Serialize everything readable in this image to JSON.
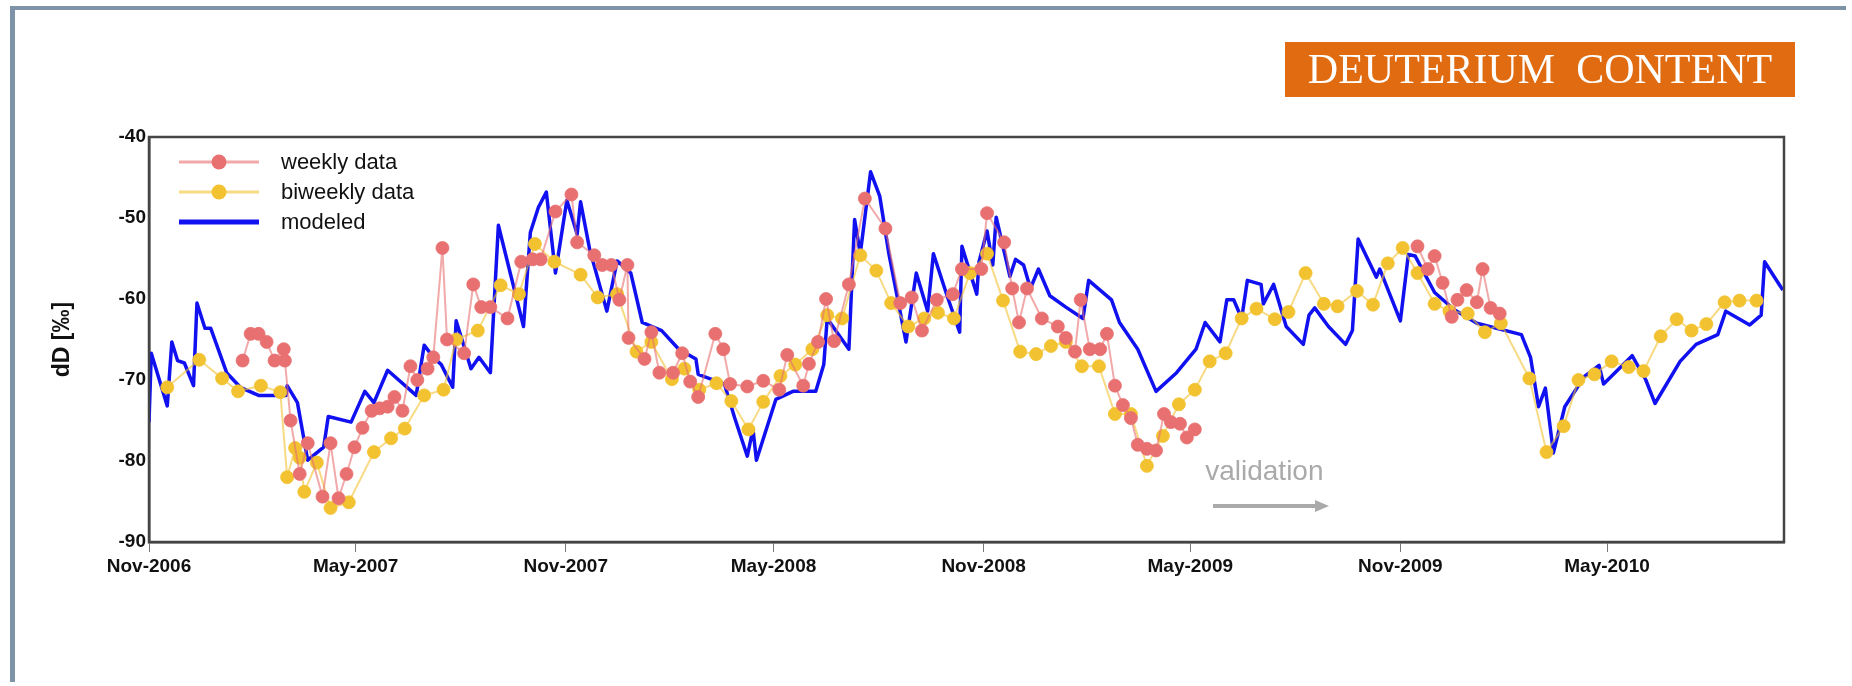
{
  "chart_data": {
    "type": "line",
    "title": "DEUTERIUM  CONTENT",
    "ylabel": "dD [‰]",
    "annotations": [
      "validation"
    ],
    "xlim": [
      "2006-11-01",
      "2010-10-03"
    ],
    "xticks": [
      {
        "value": "2006-11-01",
        "label": "Nov-2006"
      },
      {
        "value": "2007-05-01",
        "label": "May-2007"
      },
      {
        "value": "2007-11-01",
        "label": "Nov-2007"
      },
      {
        "value": "2008-05-01",
        "label": "May-2008"
      },
      {
        "value": "2008-11-01",
        "label": "Nov-2008"
      },
      {
        "value": "2009-05-01",
        "label": "May-2009"
      },
      {
        "value": "2009-11-01",
        "label": "Nov-2009"
      },
      {
        "value": "2010-05-01",
        "label": "May-2010"
      }
    ],
    "ylim": [
      -90,
      -40
    ],
    "yticks": [
      -90,
      -80,
      -70,
      -60,
      -50,
      -40
    ],
    "grid": false,
    "legend": "top left",
    "line_style": "solid",
    "series": [
      {
        "name": "weekly data",
        "color": "#e87070",
        "marker": "circle",
        "x": [
          "2007-01-22",
          "2007-01-29",
          "2007-02-05",
          "2007-02-12",
          "2007-02-19",
          "2007-02-27",
          "2007-02-28",
          "2007-03-05",
          "2007-03-13",
          "2007-03-20",
          "2007-04-02",
          "2007-04-09",
          "2007-04-16",
          "2007-04-23",
          "2007-04-30",
          "2007-05-07",
          "2007-05-15",
          "2007-05-22",
          "2007-05-29",
          "2007-06-04",
          "2007-06-11",
          "2007-06-18",
          "2007-06-24",
          "2007-07-03",
          "2007-07-08",
          "2007-07-16",
          "2007-07-20",
          "2007-08-04",
          "2007-08-12",
          "2007-08-19",
          "2007-08-27",
          "2007-09-11",
          "2007-09-23",
          "2007-10-03",
          "2007-10-10",
          "2007-10-23",
          "2007-11-06",
          "2007-11-11",
          "2007-11-26",
          "2007-12-03",
          "2007-12-11",
          "2007-12-18",
          "2007-12-25",
          "2007-12-26",
          "2008-01-09",
          "2008-01-15",
          "2008-01-22",
          "2008-02-03",
          "2008-02-11",
          "2008-02-18",
          "2008-02-25",
          "2008-03-11",
          "2008-03-18",
          "2008-03-24",
          "2008-04-08",
          "2008-04-22",
          "2008-05-06",
          "2008-05-13",
          "2008-05-27",
          "2008-06-01",
          "2008-06-09",
          "2008-06-16",
          "2008-06-23",
          "2008-07-06",
          "2008-07-20",
          "2008-08-07",
          "2008-08-20",
          "2008-08-30",
          "2008-09-08",
          "2008-09-21",
          "2008-10-05",
          "2008-10-13",
          "2008-10-30",
          "2008-11-04",
          "2008-11-19",
          "2008-11-26",
          "2008-12-02",
          "2008-12-09",
          "2008-12-22",
          "2009-01-05",
          "2009-01-12",
          "2009-01-20",
          "2009-01-25",
          "2009-02-02",
          "2009-02-11",
          "2009-02-17",
          "2009-02-24",
          "2009-03-03",
          "2009-03-10",
          "2009-03-16",
          "2009-03-24",
          "2009-04-01",
          "2009-04-08",
          "2009-04-14",
          "2009-04-22",
          "2009-04-28",
          "2009-05-05",
          "2009-08-01",
          "2009-11-16",
          "2009-11-25",
          "2009-12-01",
          "2009-12-08",
          "2009-12-16",
          "2009-12-21",
          "2009-12-29",
          "2010-01-07",
          "2010-01-12",
          "2010-01-19",
          "2010-01-27"
        ],
        "values": [
          -67.6,
          -64.3,
          -64.3,
          -65.3,
          -67.6,
          -66.2,
          -67.6,
          -75.0,
          -81.6,
          -77.8,
          -84.4,
          -77.8,
          -84.6,
          -81.6,
          -78.3,
          -75.9,
          -73.8,
          -73.5,
          -73.3,
          -72.1,
          -73.8,
          -68.3,
          -70.0,
          -68.6,
          -67.2,
          -53.7,
          -65.0,
          -66.7,
          -58.2,
          -61.0,
          -61.0,
          -62.4,
          -55.4,
          -55.1,
          -55.1,
          -49.2,
          -47.1,
          -53.0,
          -54.6,
          -55.8,
          -55.8,
          -60.1,
          -55.8,
          -64.8,
          -67.4,
          -64.1,
          -69.1,
          -69.1,
          -66.7,
          -70.2,
          -72.1,
          -64.3,
          -66.2,
          -70.5,
          -70.8,
          -70.1,
          -71.2,
          -66.9,
          -70.7,
          -68.0,
          -65.3,
          -60.0,
          -65.2,
          -58.2,
          -47.6,
          -51.3,
          -60.5,
          -59.8,
          -63.9,
          -60.1,
          -59.4,
          -56.3,
          -56.3,
          -49.4,
          -53.0,
          -58.7,
          -62.9,
          -58.7,
          -62.4,
          -63.4,
          -64.8,
          -66.5,
          -60.1,
          -66.2,
          -66.2,
          -64.3,
          -70.7,
          -73.1,
          -74.7,
          -78.0,
          -78.5,
          -78.7,
          -74.2,
          -75.2,
          -75.4,
          -77.1,
          -76.1,
          null,
          -53.5,
          -56.3,
          -54.7,
          -58.0,
          -62.2,
          -60.1,
          -58.9,
          -60.4,
          -56.3,
          -61.1,
          -61.8
        ]
      },
      {
        "name": "biweekly data",
        "color": "#f2c230",
        "marker": "circle",
        "x": [
          "2006-11-17",
          "2006-12-15",
          "2007-01-04",
          "2007-01-18",
          "2007-02-07",
          "2007-02-24",
          "2007-03-02",
          "2007-03-09",
          "2007-03-13",
          "2007-03-17",
          "2007-03-28",
          "2007-04-09",
          "2007-04-25",
          "2007-05-17",
          "2007-06-01",
          "2007-06-13",
          "2007-06-30",
          "2007-07-17",
          "2007-07-28",
          "2007-08-16",
          "2007-09-05",
          "2007-09-21",
          "2007-10-05",
          "2007-10-22",
          "2007-11-14",
          "2007-11-29",
          "2007-12-16",
          "2008-01-02",
          "2008-01-15",
          "2008-02-02",
          "2008-02-13",
          "2008-02-26",
          "2008-03-12",
          "2008-03-25",
          "2008-04-09",
          "2008-04-22",
          "2008-05-07",
          "2008-05-20",
          "2008-06-04",
          "2008-06-17",
          "2008-06-30",
          "2008-07-16",
          "2008-07-30",
          "2008-08-12",
          "2008-08-27",
          "2008-09-10",
          "2008-09-22",
          "2008-10-06",
          "2008-10-20",
          "2008-11-04",
          "2008-11-18",
          "2008-12-03",
          "2008-12-17",
          "2008-12-30",
          "2009-01-12",
          "2009-01-26",
          "2009-02-10",
          "2009-02-24",
          "2009-03-10",
          "2009-03-24",
          "2009-04-07",
          "2009-04-21",
          "2009-05-05",
          "2009-05-18",
          "2009-06-01",
          "2009-06-15",
          "2009-06-28",
          "2009-07-14",
          "2009-07-26",
          "2009-08-10",
          "2009-08-26",
          "2009-09-07",
          "2009-09-24",
          "2009-10-08",
          "2009-10-21",
          "2009-11-03",
          "2009-11-16",
          "2009-12-01",
          "2009-12-14",
          "2009-12-30",
          "2010-01-14",
          "2010-01-28",
          "2010-02-22",
          "2010-03-09",
          "2010-03-24",
          "2010-04-06",
          "2010-04-20",
          "2010-05-05",
          "2010-05-20",
          "2010-06-02",
          "2010-06-17",
          "2010-07-01",
          "2010-07-14",
          "2010-07-27",
          "2010-08-12",
          "2010-08-25",
          "2010-09-09"
        ],
        "values": [
          -70.9,
          -67.5,
          -69.8,
          -71.4,
          -70.7,
          -71.5,
          -82.0,
          -78.4,
          -79.6,
          -83.8,
          -80.2,
          -85.8,
          -85.1,
          -78.9,
          -77.2,
          -76.0,
          -71.9,
          -71.2,
          -65.0,
          -63.9,
          -58.3,
          -59.4,
          -53.2,
          -55.4,
          -57.0,
          -59.8,
          -59.4,
          -66.5,
          -65.3,
          -69.9,
          -68.6,
          -71.2,
          -70.4,
          -72.6,
          -76.1,
          -72.7,
          -69.5,
          -68.1,
          -66.2,
          -62.0,
          -62.4,
          -54.6,
          -56.5,
          -60.5,
          -63.4,
          -62.4,
          -61.7,
          -62.4,
          -56.8,
          -54.4,
          -60.2,
          -66.5,
          -66.8,
          -65.8,
          -65.3,
          -68.3,
          -68.3,
          -74.2,
          -74.2,
          -80.6,
          -76.9,
          -73.0,
          -71.2,
          -67.7,
          -66.7,
          -62.4,
          -61.2,
          -62.5,
          -61.6,
          -56.8,
          -60.6,
          -60.9,
          -59.0,
          -60.7,
          -55.6,
          -53.7,
          -56.8,
          -60.6,
          -61.5,
          -61.8,
          -64.1,
          -63.0,
          -69.8,
          -78.9,
          -75.7,
          -70.0,
          -69.3,
          -67.7,
          -68.4,
          -68.9,
          -64.6,
          -62.5,
          -63.9,
          -63.1,
          -60.4,
          -60.2,
          -60.2
        ]
      },
      {
        "name": "modeled",
        "color": "#1010f0",
        "marker": "none",
        "x": [
          "2006-11-01",
          "2006-11-03",
          "2006-11-17",
          "2006-11-21",
          "2006-11-26",
          "2006-12-02",
          "2006-12-10",
          "2006-12-13",
          "2006-12-20",
          "2006-12-25",
          "2007-01-08",
          "2007-01-20",
          "2007-02-05",
          "2007-03-01",
          "2007-03-02",
          "2007-03-11",
          "2007-03-20",
          "2007-04-03",
          "2007-04-07",
          "2007-04-27",
          "2007-05-09",
          "2007-05-17",
          "2007-05-29",
          "2007-06-23",
          "2007-06-30",
          "2007-07-08",
          "2007-07-15",
          "2007-07-25",
          "2007-07-28",
          "2007-08-10",
          "2007-08-17",
          "2007-08-27",
          "2007-09-03",
          "2007-09-25",
          "2007-10-01",
          "2007-10-08",
          "2007-10-15",
          "2007-10-23",
          "2007-11-02",
          "2007-11-11",
          "2007-11-14",
          "2007-11-22",
          "2007-12-07",
          "2007-12-16",
          "2007-12-28",
          "2008-01-07",
          "2008-01-24",
          "2008-02-08",
          "2008-02-23",
          "2008-02-25",
          "2008-03-19",
          "2008-03-28",
          "2008-04-08",
          "2008-04-13",
          "2008-04-16",
          "2008-05-03",
          "2008-05-18",
          "2008-06-07",
          "2008-06-14",
          "2008-06-17",
          "2008-07-06",
          "2008-07-11",
          "2008-07-16",
          "2008-07-25",
          "2008-08-02",
          "2008-08-10",
          "2008-08-25",
          "2008-09-03",
          "2008-09-13",
          "2008-09-18",
          "2008-09-30",
          "2008-10-11",
          "2008-10-13",
          "2008-10-26",
          "2008-10-28",
          "2008-11-04",
          "2008-11-09",
          "2008-11-12",
          "2008-11-24",
          "2008-11-29",
          "2008-12-06",
          "2008-12-12",
          "2008-12-19",
          "2008-12-29",
          "2009-01-12",
          "2009-01-27",
          "2009-02-01",
          "2009-02-21",
          "2009-02-28",
          "2009-03-16",
          "2009-04-01",
          "2009-04-19",
          "2009-05-06",
          "2009-05-14",
          "2009-05-27",
          "2009-06-02",
          "2009-06-08",
          "2009-06-15",
          "2009-06-20",
          "2009-07-02",
          "2009-07-04",
          "2009-07-13",
          "2009-07-24",
          "2009-08-08",
          "2009-08-13",
          "2009-08-18",
          "2009-08-30",
          "2009-09-14",
          "2009-09-20",
          "2009-09-25",
          "2009-10-11",
          "2009-10-14",
          "2009-11-01",
          "2009-11-08",
          "2009-11-14",
          "2009-12-01",
          "2009-12-18",
          "2010-01-07",
          "2010-02-15",
          "2010-02-23",
          "2010-03-02",
          "2010-03-08",
          "2010-03-15",
          "2010-03-25",
          "2010-04-11",
          "2010-04-24",
          "2010-04-28",
          "2010-05-23",
          "2010-06-04",
          "2010-06-12",
          "2010-07-04",
          "2010-07-18",
          "2010-08-06",
          "2010-08-13",
          "2010-09-03",
          "2010-09-13",
          "2010-09-16",
          "2010-10-02"
        ],
        "values": [
          -75.2,
          -66.7,
          -73.2,
          -65.3,
          -67.6,
          -67.9,
          -70.7,
          -60.5,
          -63.6,
          -63.6,
          -69.1,
          -70.9,
          -71.9,
          -71.9,
          -70.7,
          -72.8,
          -79.9,
          -78.3,
          -74.5,
          -75.2,
          -71.4,
          -72.8,
          -68.8,
          -71.9,
          -65.7,
          -67.2,
          -68.1,
          -70.9,
          -62.7,
          -68.6,
          -67.2,
          -69.1,
          -50.9,
          -63.4,
          -51.8,
          -48.7,
          -46.8,
          -56.8,
          -47.8,
          -52.0,
          -48.0,
          -53.9,
          -61.5,
          -55.3,
          -56.8,
          -62.9,
          -63.9,
          -66.2,
          -67.4,
          -69.3,
          -70.5,
          -74.7,
          -79.4,
          -76.1,
          -79.9,
          -72.4,
          -71.4,
          -71.4,
          -68.1,
          -62.4,
          -66.2,
          -50.2,
          -54.4,
          -44.3,
          -47.3,
          -54.4,
          -65.3,
          -56.8,
          -61.5,
          -54.4,
          -59.6,
          -64.1,
          -53.5,
          -59.4,
          -55.4,
          -51.6,
          -55.8,
          -49.9,
          -57.2,
          -55.1,
          -55.8,
          -58.7,
          -56.3,
          -59.6,
          -61.0,
          -62.4,
          -57.7,
          -60.1,
          -62.9,
          -66.2,
          -71.4,
          -69.1,
          -66.2,
          -62.9,
          -65.3,
          -60.1,
          -60.1,
          -62.4,
          -57.7,
          -58.2,
          -60.6,
          -58.2,
          -63.4,
          -65.6,
          -62.0,
          -61.1,
          -63.4,
          -65.6,
          -63.9,
          -52.6,
          -57.3,
          -56.3,
          -62.7,
          -54.5,
          -54.7,
          -59.2,
          -61.3,
          -63.0,
          -64.4,
          -67.2,
          -73.3,
          -71.0,
          -79.0,
          -73.3,
          -69.6,
          -68.2,
          -70.5,
          -67.0,
          -70.0,
          -72.9,
          -67.7,
          -65.6,
          -64.4,
          -61.5,
          -63.2,
          -62.0,
          -55.4,
          -58.9
        ]
      }
    ]
  }
}
